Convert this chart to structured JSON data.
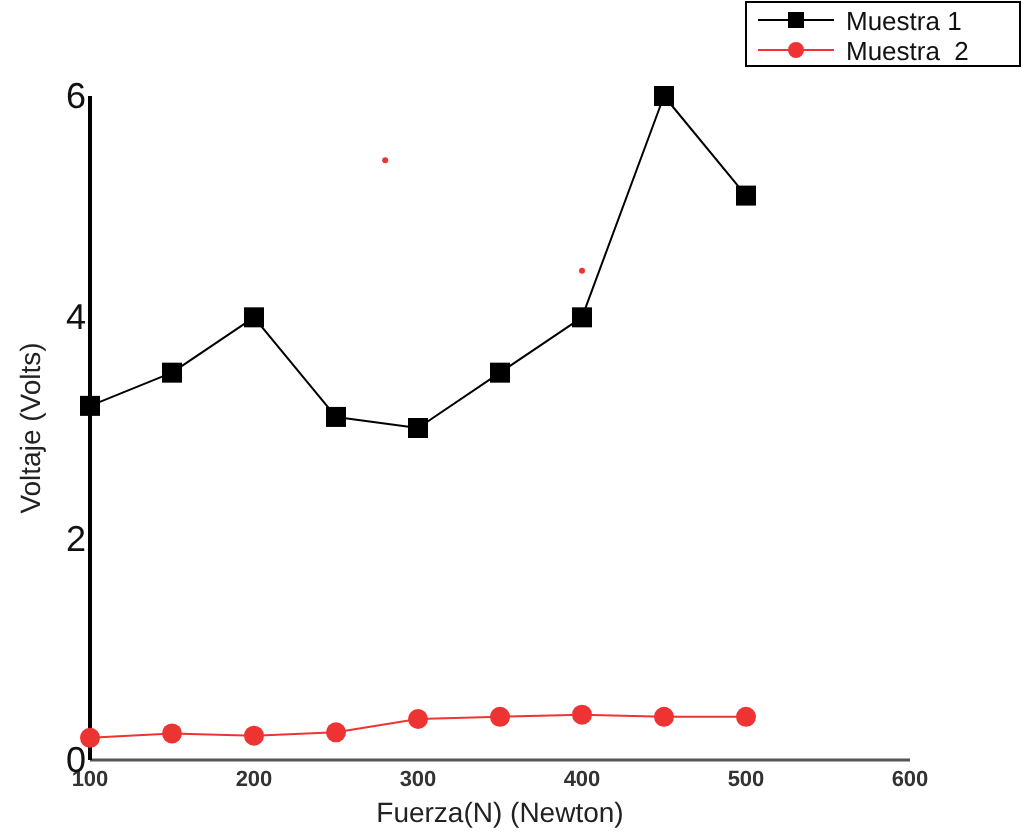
{
  "chart_data": {
    "type": "line",
    "xlabel": "Fuerza(N) (Newton)",
    "ylabel": "Voltaje (Volts)",
    "x": [
      100,
      150,
      200,
      250,
      300,
      350,
      400,
      450,
      500
    ],
    "xlim": [
      100,
      600
    ],
    "xticks": [
      100,
      200,
      300,
      400,
      500,
      600
    ],
    "ylim": [
      0,
      6
    ],
    "yticks": [
      0,
      2,
      4,
      6
    ],
    "grid": false,
    "legend": "top right",
    "series": [
      {
        "name": "Muestra 1",
        "color": "#000000",
        "marker": "square",
        "values": [
          3.2,
          3.5,
          4.0,
          3.1,
          3.0,
          3.5,
          4.0,
          6.0,
          5.1
        ]
      },
      {
        "name": "Muestra  2",
        "color": "#ee3333",
        "marker": "circle",
        "values": [
          0.2,
          0.24,
          0.22,
          0.25,
          0.37,
          0.39,
          0.41,
          0.39,
          0.39
        ]
      },
      {
        "type": "scatter",
        "color": "#ee3333",
        "marker": "circle",
        "x": [
          280,
          400
        ],
        "values": [
          5.42,
          4.42
        ]
      }
    ]
  }
}
